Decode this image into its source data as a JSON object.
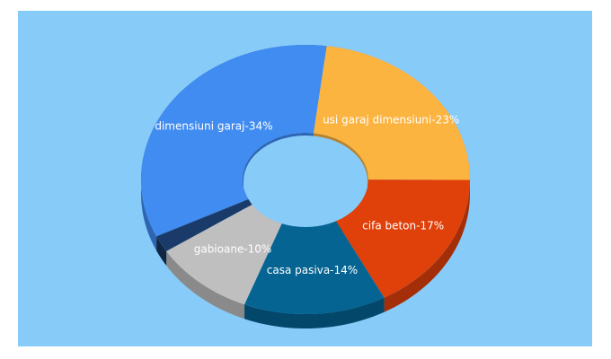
{
  "background_color": "#ffffff",
  "panel_color": "#87cbf9",
  "chart_data": {
    "type": "pie",
    "variant": "3d-donut",
    "title": "",
    "slices": [
      {
        "label": "dimensiuni garaj-34%",
        "name": "dimensiuni garaj",
        "value": 34,
        "color": "#418cf0",
        "shade": "#2e66b4"
      },
      {
        "label": "usi garaj dimensiuni-23%",
        "name": "usi garaj dimensiuni",
        "value": 23,
        "color": "#fcb441",
        "shade": "#b8832f"
      },
      {
        "label": "cifa beton-17%",
        "name": "cifa beton",
        "value": 17,
        "color": "#e0400a",
        "shade": "#a32e07"
      },
      {
        "label": "casa pasiva-14%",
        "name": "casa pasiva",
        "value": 14,
        "color": "#056492",
        "shade": "#03476a"
      },
      {
        "label": "gabioane-10%",
        "name": "gabioane",
        "value": 10,
        "color": "#bfbfbf",
        "shade": "#8a8a8a"
      },
      {
        "label": "",
        "name": "other",
        "value": 2,
        "color": "#1a3b69",
        "shade": "#102643"
      }
    ]
  }
}
